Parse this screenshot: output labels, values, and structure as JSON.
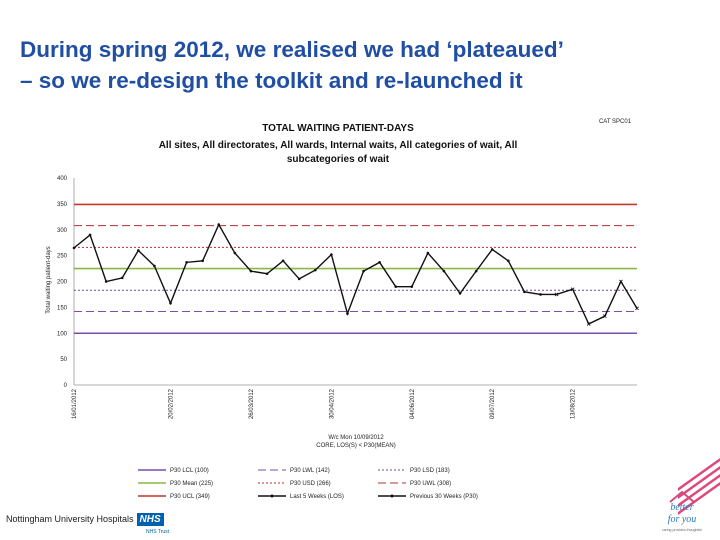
{
  "slide": {
    "headline_line1": "During spring 2012, we realised we had ‘plateaued’",
    "headline_line2": "– so we re-design the toolkit and re-launched it"
  },
  "footer": {
    "org_name": "Nottingham University Hospitals",
    "nhs_badge": "NHS",
    "trust_label": "NHS Trust",
    "logo_text_top": "better",
    "logo_text_bottom": "for you",
    "logo_tagline": "caring provides thoughtful"
  },
  "chart_data": {
    "type": "line",
    "code_label": "CAT SPC01",
    "title": "TOTAL WAITING PATIENT-DAYS",
    "subtitle_lines": [
      "All sites, All directorates, All wards, Internal waits, All categories of wait, All",
      "subcategories of wait"
    ],
    "ylabel": "Total waiting patient-days",
    "xlabel_lines": [
      "W/c Mon 10/09/2012",
      "CORE, LOS(S) < P30(MEAN)"
    ],
    "ylim": [
      0,
      400
    ],
    "yticks": [
      "0",
      "50",
      "100",
      "150",
      "200",
      "250",
      "300",
      "350",
      "400"
    ],
    "x_date_labels": [
      {
        "index": 0,
        "label": "16/01/2012"
      },
      {
        "index": 6,
        "label": "20/02/2012"
      },
      {
        "index": 11,
        "label": "26/03/2012"
      },
      {
        "index": 16,
        "label": "30/04/2012"
      },
      {
        "index": 21,
        "label": "04/06/2012"
      },
      {
        "index": 26,
        "label": "09/07/2012"
      },
      {
        "index": 31,
        "label": "13/08/2012"
      }
    ],
    "control_lines": [
      {
        "key": "lcl",
        "name": "P30 LCL (100)",
        "value": 100,
        "color": "#7a4fa8",
        "style": "solid"
      },
      {
        "key": "lwl",
        "name": "P30 LWL (142)",
        "value": 142,
        "color": "#7a4fa8",
        "style": "dashed"
      },
      {
        "key": "lsd",
        "name": "P30 LSD (183)",
        "value": 183,
        "color": "#6a4a9a",
        "style": "dotted"
      },
      {
        "key": "mean",
        "name": "P30 Mean (225)",
        "value": 225,
        "color": "#8ab840",
        "style": "solid"
      },
      {
        "key": "usd",
        "name": "P30 USD (266)",
        "value": 266,
        "color": "#b03030",
        "style": "dotted"
      },
      {
        "key": "uwl",
        "name": "P30 UWL (308)",
        "value": 308,
        "color": "#b03030",
        "style": "dashed"
      },
      {
        "key": "ucl",
        "name": "P30 UCL (349)",
        "value": 349,
        "color": "#c0392b",
        "style": "solid"
      }
    ],
    "series": [
      {
        "name": "Previous 30 Weeks (P30)",
        "values": [
          265,
          290,
          200,
          207,
          260,
          230,
          158,
          237,
          240,
          310,
          255,
          220,
          215,
          240,
          205,
          222,
          252,
          138,
          220,
          237,
          190,
          190,
          255,
          220,
          177,
          220,
          262,
          240,
          180,
          175
        ]
      },
      {
        "name": "Last 5 Weeks (LOS)",
        "values": [
          175,
          185,
          118,
          133,
          200,
          148
        ]
      }
    ],
    "legend": [
      {
        "key": "lcl",
        "label": "P30 LCL (100)"
      },
      {
        "key": "lwl",
        "label": "P30 LWL (142)"
      },
      {
        "key": "lsd",
        "label": "P30 LSD (183)"
      },
      {
        "key": "mean",
        "label": "P30 Mean (225)"
      },
      {
        "key": "usd",
        "label": "P30 USD (266)"
      },
      {
        "key": "uwl",
        "label": "P30 UWL (308)"
      },
      {
        "key": "ucl",
        "label": "P30 UCL (349)"
      },
      {
        "key": "last5",
        "label": "Last 5 Weeks (LOS)"
      },
      {
        "key": "prev30",
        "label": "Previous 30 Weeks (P30)"
      }
    ]
  }
}
